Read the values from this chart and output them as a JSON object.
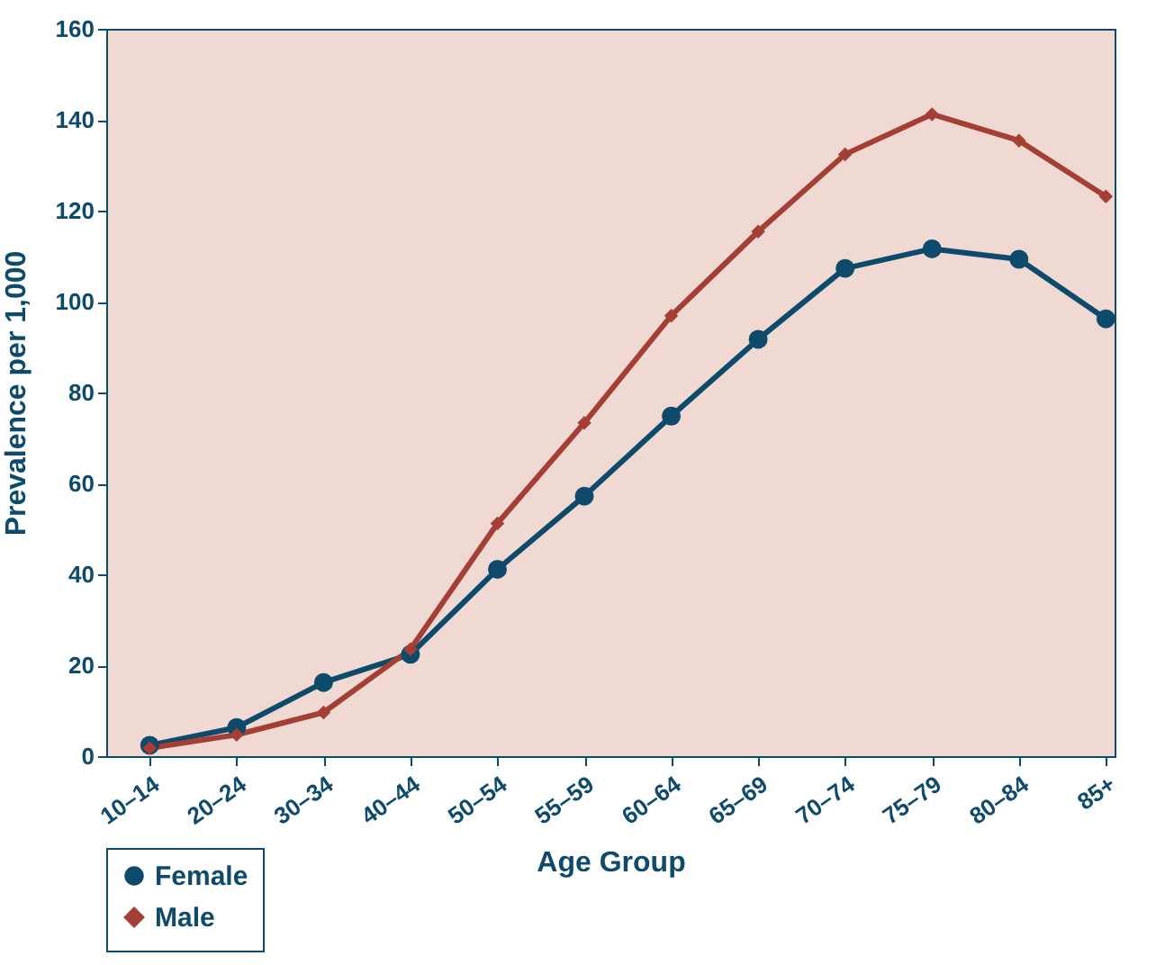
{
  "chart_data": {
    "type": "line",
    "xlabel": "Age Group",
    "ylabel": "Prevalence per 1,000",
    "categories": [
      "10–14",
      "20–24",
      "30–34",
      "40–44",
      "50–54",
      "55–59",
      "60–64",
      "65–69",
      "70–74",
      "75–79",
      "80–84",
      "85+"
    ],
    "series": [
      {
        "name": "Female",
        "color": "#0d4a6b",
        "marker": "circle",
        "values": [
          2.4,
          6.3,
          16.2,
          22.4,
          41.1,
          57.2,
          74.8,
          91.7,
          107.3,
          111.6,
          109.3,
          96.2
        ]
      },
      {
        "name": "Male",
        "color": "#a53f35",
        "marker": "diamond",
        "values": [
          1.8,
          4.7,
          9.6,
          23.5,
          51.2,
          73.3,
          96.9,
          115.4,
          132.4,
          141.2,
          135.4,
          123.1
        ]
      }
    ],
    "ylim": [
      0,
      160
    ],
    "yticks": [
      0,
      20,
      40,
      60,
      80,
      100,
      120,
      140,
      160
    ],
    "grid": false,
    "legend": "bottom left",
    "line_style": "solid"
  }
}
